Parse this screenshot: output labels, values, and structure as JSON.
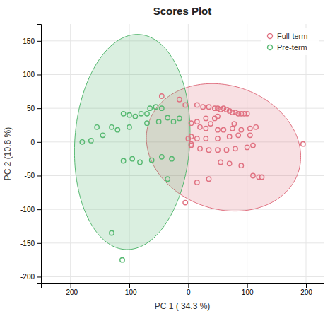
{
  "chart_data": {
    "type": "scatter",
    "title": "Scores Plot",
    "xlabel": "PC 1 ( 34.3 %)",
    "ylabel": "PC 2 (10.6 %)",
    "xlim": [
      -250,
      230
    ],
    "ylim": [
      -210,
      175
    ],
    "xticks": [
      -200,
      -100,
      0,
      100,
      200
    ],
    "yticks": [
      -200,
      -150,
      -100,
      -50,
      0,
      50,
      100,
      150
    ],
    "grid": true,
    "legend": "upper right",
    "series": [
      {
        "name": "Full-term",
        "color": "#e07080",
        "x": [
          -45,
          -15,
          -5,
          15,
          25,
          35,
          45,
          50,
          55,
          60,
          65,
          70,
          75,
          80,
          85,
          90,
          95,
          100,
          50,
          45,
          30,
          15,
          5,
          20,
          30,
          50,
          60,
          75,
          90,
          105,
          115,
          85,
          70,
          50,
          30,
          15,
          5,
          0,
          5,
          20,
          35,
          50,
          65,
          80,
          100,
          110,
          55,
          70,
          90,
          110,
          120,
          125,
          35,
          15,
          -5,
          195,
          5,
          38,
          78,
          105
        ],
        "values": [
          68,
          63,
          55,
          55,
          52,
          52,
          50,
          50,
          48,
          50,
          48,
          46,
          44,
          44,
          42,
          42,
          42,
          42,
          38,
          35,
          35,
          30,
          28,
          22,
          20,
          18,
          18,
          20,
          18,
          20,
          22,
          10,
          8,
          5,
          5,
          5,
          8,
          5,
          -5,
          -10,
          -12,
          -12,
          -12,
          -10,
          -8,
          -5,
          -30,
          -32,
          -35,
          -50,
          -52,
          -52,
          -55,
          -60,
          -90,
          -3,
          -3,
          27,
          27,
          10
        ],
        "ellipse": {
          "center_x": 60,
          "center_y": -8,
          "width": 265,
          "height": 185,
          "angle": -12
        }
      },
      {
        "name": "Pre-term",
        "color": "#55b870",
        "x": [
          -155,
          -130,
          -110,
          -100,
          -90,
          -80,
          -70,
          -65,
          -55,
          -45,
          -35,
          -25,
          -15,
          -50,
          -70,
          -100,
          -120,
          -145,
          -165,
          -180,
          -95,
          -110,
          -82,
          -62,
          -45,
          -28,
          -35,
          -130,
          -112
        ],
        "values": [
          22,
          22,
          42,
          40,
          38,
          42,
          42,
          50,
          52,
          50,
          36,
          30,
          35,
          30,
          28,
          22,
          18,
          10,
          2,
          0,
          -25,
          -28,
          -30,
          -27,
          -22,
          -25,
          -55,
          -135,
          -175
        ],
        "ellipse": {
          "center_x": -95,
          "center_y": 0,
          "width": 195,
          "height": 320,
          "angle": -5
        }
      }
    ]
  }
}
